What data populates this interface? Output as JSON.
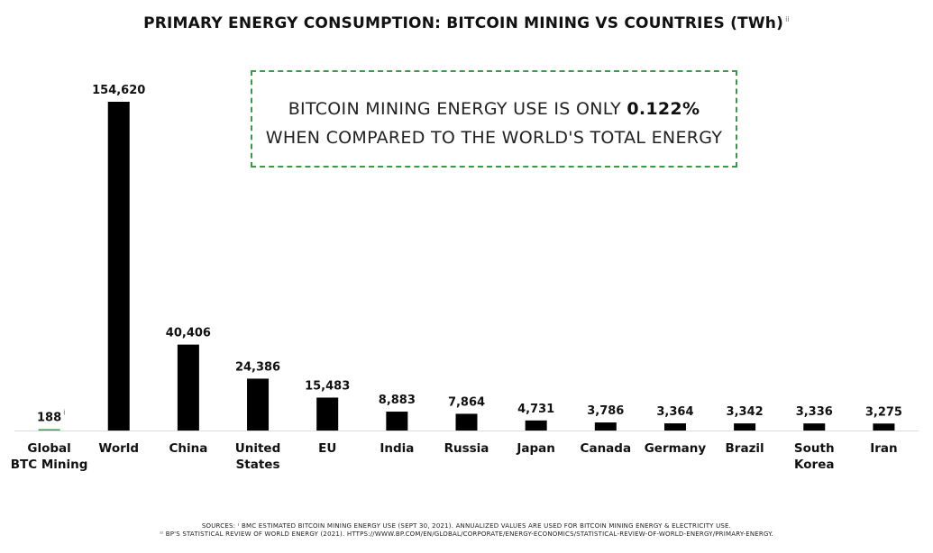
{
  "title": "PRIMARY ENERGY CONSUMPTION: BITCOIN MINING VS COUNTRIES (TWh)",
  "title_note": "ii",
  "callout": {
    "line1_prefix": "BITCOIN MINING ENERGY USE IS ONLY ",
    "line1_value": "0.122%",
    "line2": "WHEN COMPARED TO THE WORLD'S TOTAL ENERGY"
  },
  "colors": {
    "bar": "#000000",
    "highlight": "#3a9a4a",
    "axis": "#dddddd"
  },
  "chart_data": {
    "type": "bar",
    "title": "PRIMARY ENERGY CONSUMPTION: BITCOIN MINING VS COUNTRIES (TWh)",
    "categories": [
      [
        "Global",
        "BTC Mining"
      ],
      [
        "World"
      ],
      [
        "China"
      ],
      [
        "United",
        "States"
      ],
      [
        "EU"
      ],
      [
        "India"
      ],
      [
        "Russia"
      ],
      [
        "Japan"
      ],
      [
        "Canada"
      ],
      [
        "Germany"
      ],
      [
        "Brazil"
      ],
      [
        "South",
        "Korea"
      ],
      [
        "Iran"
      ]
    ],
    "values": [
      188,
      154620,
      40406,
      24386,
      15483,
      8883,
      7864,
      4731,
      3786,
      3364,
      3342,
      3336,
      3275
    ],
    "value_labels": [
      "188",
      "154,620",
      "40,406",
      "24,386",
      "15,483",
      "8,883",
      "7,864",
      "4,731",
      "3,786",
      "3,364",
      "3,342",
      "3,336",
      "3,275"
    ],
    "value_label_notes": [
      "i",
      "",
      "",
      "",
      "",
      "",
      "",
      "",
      "",
      "",
      "",
      "",
      ""
    ],
    "highlight_index": 0,
    "ylim": [
      0,
      154620
    ],
    "grid": false,
    "xlabel": "",
    "ylabel": ""
  },
  "sources": {
    "line1": "SOURCES: ᶦ BMC ESTIMATED BITCOIN MINING ENERGY USE (SEPT 30, 2021). ANNUALIZED VALUES ARE USED FOR BITCOIN MINING ENERGY & ELECTRICITY USE.",
    "line2": "ᶦᶦ BP'S STATISTICAL REVIEW OF WORLD ENERGY (2021). HTTPS://WWW.BP.COM/EN/GLOBAL/CORPORATE/ENERGY-ECONOMICS/STATISTICAL-REVIEW-OF-WORLD-ENERGY/PRIMARY-ENERGY."
  }
}
